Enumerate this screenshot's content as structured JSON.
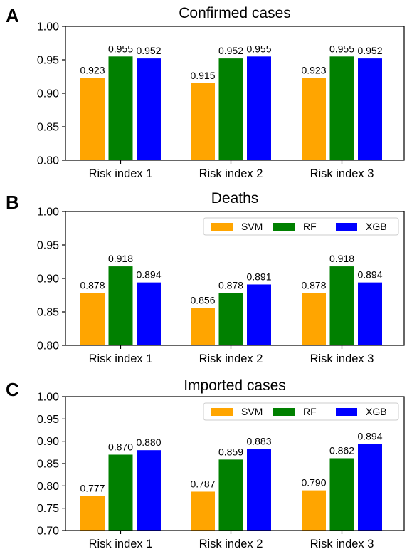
{
  "chart_data": [
    {
      "type": "bar",
      "panel_letter": "A",
      "title": "Confirmed cases",
      "categories": [
        "Risk index 1",
        "Risk index 2",
        "Risk index 3"
      ],
      "series": [
        {
          "name": "SVM",
          "color": "#ffa500",
          "values": [
            0.923,
            0.915,
            0.923
          ],
          "labels": [
            "0.923",
            "0.915",
            "0.923"
          ]
        },
        {
          "name": "RF",
          "color": "#008000",
          "values": [
            0.955,
            0.952,
            0.955
          ],
          "labels": [
            "0.955",
            "0.952",
            "0.955"
          ]
        },
        {
          "name": "XGB",
          "color": "#0000ff",
          "values": [
            0.952,
            0.955,
            0.952
          ],
          "labels": [
            "0.952",
            "0.955",
            "0.952"
          ]
        }
      ],
      "ylim": [
        0.8,
        1.0
      ],
      "yticks": [
        "0.80",
        "0.85",
        "0.90",
        "0.95",
        "1.00"
      ],
      "legend": {
        "show": false
      }
    },
    {
      "type": "bar",
      "panel_letter": "B",
      "title": "Deaths",
      "categories": [
        "Risk index 1",
        "Risk index 2",
        "Risk index 3"
      ],
      "series": [
        {
          "name": "SVM",
          "color": "#ffa500",
          "values": [
            0.878,
            0.856,
            0.878
          ],
          "labels": [
            "0.878",
            "0.856",
            "0.878"
          ]
        },
        {
          "name": "RF",
          "color": "#008000",
          "values": [
            0.918,
            0.878,
            0.918
          ],
          "labels": [
            "0.918",
            "0.878",
            "0.918"
          ]
        },
        {
          "name": "XGB",
          "color": "#0000ff",
          "values": [
            0.894,
            0.891,
            0.894
          ],
          "labels": [
            "0.894",
            "0.891",
            "0.894"
          ]
        }
      ],
      "ylim": [
        0.8,
        1.0
      ],
      "yticks": [
        "0.80",
        "0.85",
        "0.90",
        "0.95",
        "1.00"
      ],
      "legend": {
        "show": true,
        "placement": "top-right"
      }
    },
    {
      "type": "bar",
      "panel_letter": "C",
      "title": "Imported cases",
      "categories": [
        "Risk index 1",
        "Risk index 2",
        "Risk index 3"
      ],
      "series": [
        {
          "name": "SVM",
          "color": "#ffa500",
          "values": [
            0.777,
            0.787,
            0.79
          ],
          "labels": [
            "0.777",
            "0.787",
            "0.790"
          ]
        },
        {
          "name": "RF",
          "color": "#008000",
          "values": [
            0.87,
            0.859,
            0.862
          ],
          "labels": [
            "0.870",
            "0.859",
            "0.862"
          ]
        },
        {
          "name": "XGB",
          "color": "#0000ff",
          "values": [
            0.88,
            0.883,
            0.894
          ],
          "labels": [
            "0.880",
            "0.883",
            "0.894"
          ]
        }
      ],
      "ylim": [
        0.7,
        1.0
      ],
      "yticks": [
        "0.70",
        "0.75",
        "0.80",
        "0.85",
        "0.90",
        "0.95",
        "1.00"
      ],
      "legend": {
        "show": true,
        "placement": "top-right"
      }
    }
  ]
}
